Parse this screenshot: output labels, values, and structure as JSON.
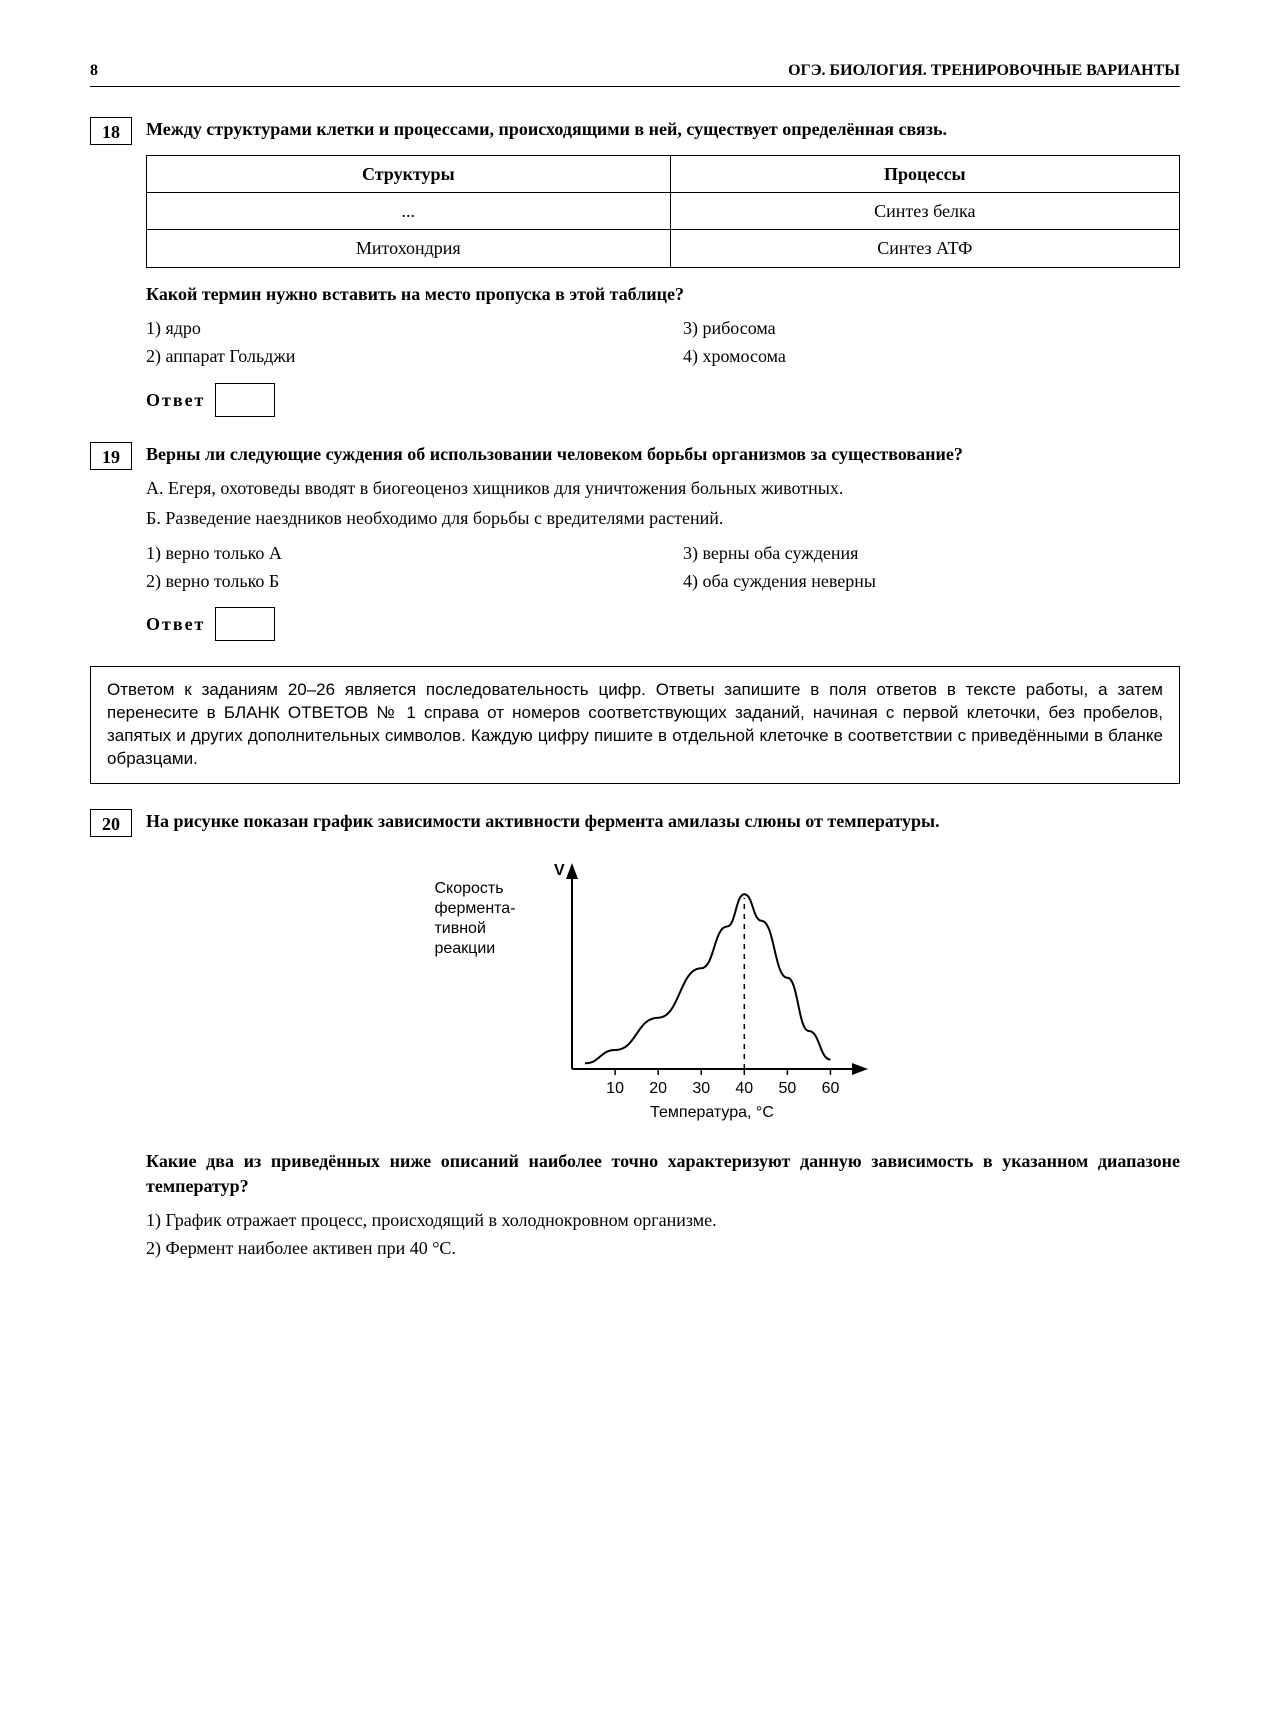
{
  "header": {
    "page_number": "8",
    "title": "ОГЭ. БИОЛОГИЯ. ТРЕНИРОВОЧНЫЕ ВАРИАНТЫ"
  },
  "task18": {
    "num": "18",
    "prompt": "Между структурами клетки и процессами, происходящими в ней, существует определённая связь.",
    "table": {
      "headers": [
        "Структуры",
        "Процессы"
      ],
      "rows": [
        [
          "...",
          "Синтез белка"
        ],
        [
          "Митохондрия",
          "Синтез АТФ"
        ]
      ]
    },
    "question": "Какой термин нужно вставить на место пропуска в этой таблице?",
    "options": [
      "1) ядро",
      "3) рибосома",
      "2) аппарат Гольджи",
      "4) хромосома"
    ],
    "answer_label": "Ответ"
  },
  "task19": {
    "num": "19",
    "prompt": "Верны ли следующие суждения об использовании человеком борьбы организмов за существование?",
    "statements": [
      "А. Егеря, охотоведы вводят в биогеоценоз хищников для уничтожения больных животных.",
      "Б. Разведение наездников необходимо для борьбы с вредителями растений."
    ],
    "options": [
      "1) верно только А",
      "3) верны оба суждения",
      "2) верно только Б",
      "4) оба суждения неверны"
    ],
    "answer_label": "Ответ"
  },
  "info_box": "Ответом к заданиям 20–26 является последовательность цифр. Ответы запишите в поля ответов в тексте работы, а затем перенесите в БЛАНК ОТВЕТОВ № 1 справа от номеров соответствующих заданий, начиная с первой клеточки, без пробелов, запятых и других дополнительных символов. Каждую цифру пишите в отдельной клеточке в соответствии с приведёнными в бланке образцами.",
  "task20": {
    "num": "20",
    "prompt": "На рисунке показан график зависимости активности фермента амилазы слюны от температуры.",
    "question": "Какие два из приведённых ниже описаний наиболее точно характеризуют данную зависимость в указанном диапазоне температур?",
    "items": [
      "1) График отражает процесс, происходящий в холоднокровном организме.",
      "2) Фермент наиболее активен при 40 °С."
    ]
  },
  "chart": {
    "type": "line",
    "y_axis_label": "V",
    "left_label_lines": [
      "Скорость",
      "фермента-",
      "тивной",
      "реакции"
    ],
    "x_axis_label": "Температура, °C",
    "x_ticks": [
      10,
      20,
      30,
      40,
      50,
      60
    ],
    "x_range": [
      0,
      65
    ],
    "peak_x": 40,
    "dash_line_x": 40,
    "curve_points": [
      [
        3,
        3
      ],
      [
        10,
        10
      ],
      [
        20,
        27
      ],
      [
        30,
        53
      ],
      [
        36,
        75
      ],
      [
        40,
        92
      ],
      [
        44,
        78
      ],
      [
        50,
        48
      ],
      [
        55,
        20
      ],
      [
        60,
        5
      ]
    ],
    "colors": {
      "axis": "#000000",
      "curve": "#000000",
      "background": "#ffffff"
    },
    "axis_stroke_width": 2,
    "curve_stroke_width": 2,
    "font_family": "Arial, Helvetica, sans-serif",
    "tick_fontsize": 16,
    "label_fontsize": 16
  }
}
